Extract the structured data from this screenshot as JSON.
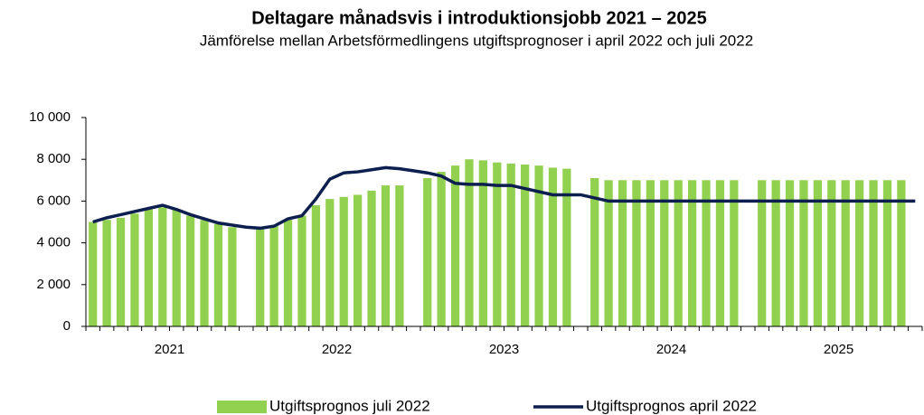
{
  "chart_data": {
    "type": "bar_line",
    "title": "Deltagare månadsvis i introduktionsjobb 2021 – 2025",
    "subtitle": "Jämförelse mellan Arbetsförmedlingens utgiftsprognoser i april 2022 och juli 2022",
    "years": [
      "2021",
      "2022",
      "2023",
      "2024",
      "2025"
    ],
    "ylim": [
      0,
      10000
    ],
    "yticks": [
      0,
      {
        "value": 2000,
        "label": "2 000"
      },
      {
        "value": 4000,
        "label": "4 000"
      },
      {
        "value": 6000,
        "label": "6 000"
      },
      {
        "value": 8000,
        "label": "8 000"
      },
      {
        "value": 10000,
        "label": "10 000"
      }
    ],
    "grid": false,
    "series": [
      {
        "name": "Utgiftsprognos juli 2022",
        "kind": "bar",
        "color": "#92d050",
        "values": [
          5000,
          5100,
          5200,
          5400,
          5600,
          5700,
          5600,
          5300,
          5100,
          4900,
          4750,
          null,
          4700,
          4800,
          5100,
          5300,
          5800,
          6100,
          6200,
          6300,
          6500,
          6750,
          6750,
          null,
          7100,
          7400,
          7700,
          8000,
          7950,
          7850,
          7800,
          7750,
          7700,
          7600,
          7550,
          null,
          7100,
          7000,
          7000,
          7000,
          7000,
          7000,
          7000,
          7000,
          7000,
          7000,
          7000,
          null,
          7000,
          7000,
          7000,
          7000,
          7000,
          7000,
          7000,
          7000,
          7000,
          7000,
          7000,
          null
        ]
      },
      {
        "name": "Utgiftsprognos april 2022",
        "kind": "line",
        "color": "#0d1f4f",
        "values": [
          5000,
          5200,
          5350,
          5500,
          5650,
          5800,
          5600,
          5350,
          5150,
          4950,
          4850,
          4750,
          4700,
          4800,
          5150,
          5300,
          6100,
          7050,
          7350,
          7400,
          7500,
          7600,
          7550,
          7450,
          7350,
          7200,
          6850,
          6800,
          6800,
          6750,
          6750,
          6600,
          6450,
          6300,
          6300,
          6300,
          6150,
          6000,
          6000,
          6000,
          6000,
          6000,
          6000,
          6000,
          6000,
          6000,
          6000,
          6000,
          6000,
          6000,
          6000,
          6000,
          6000,
          6000,
          6000,
          6000,
          6000,
          6000,
          6000,
          6000
        ]
      }
    ]
  }
}
